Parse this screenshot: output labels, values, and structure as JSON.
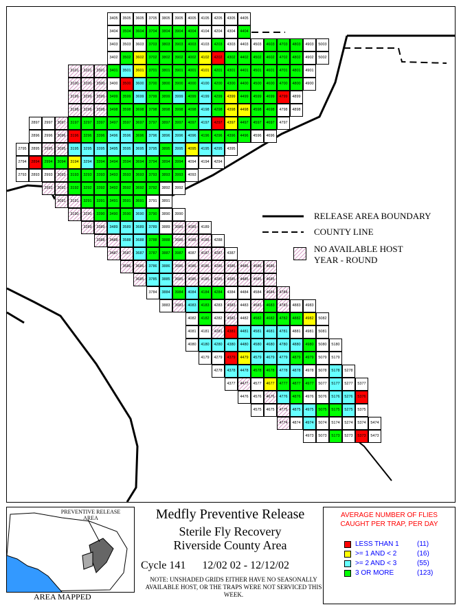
{
  "legend": {
    "release_boundary": "RELEASE AREA BOUNDARY",
    "county_line": "COUNTY LINE",
    "no_host_line1": "NO AVAILABLE HOST",
    "no_host_line2": "YEAR - ROUND"
  },
  "inset": {
    "title": "PREVENTIVE RELEASE AREA",
    "caption": "AREA MAPPED"
  },
  "title": {
    "line1": "Medfly Preventive Release",
    "line2": "Sterile Fly Recovery",
    "line3": "Riverside County Area",
    "cycle": "Cycle 141",
    "dates": "12/02 02 - 12/12/02",
    "note": "NOTE: UNSHADED GRIDS EITHER HAVE NO SEASONALLY AVAILABLE HOST, OR THE TRAPS WERE NOT SERVICED THIS WEEK."
  },
  "key": {
    "title": "AVERAGE NUMBER OF FLIES CAUGHT PER TRAP, PER DAY",
    "items": [
      {
        "label": "LESS THAN 1",
        "count": "(11)",
        "color": "#ff0000"
      },
      {
        "label": ">= 1 AND < 2",
        "count": "(16)",
        "color": "#ffff00"
      },
      {
        "label": ">= 2 AND < 3",
        "count": "(55)",
        "color": "#66ffff"
      },
      {
        "label": "3 OR MORE",
        "count": "(123)",
        "color": "#00ff00"
      }
    ]
  },
  "colors": {
    "red": "#ff0000",
    "yellow": "#ffff00",
    "cyan": "#66ffff",
    "green": "#00ff00",
    "hatch": "#d8a0c8"
  },
  "grid_rows": [
    {
      "x0": 3405,
      "cells": [
        "3405w",
        "3505w",
        "3605w",
        "3705w",
        "3805w",
        "3905w",
        "4005w",
        "4105w",
        "4205w",
        "4305w",
        "4405w"
      ]
    },
    {
      "x0": 3404,
      "cells": [
        "3404w",
        "3504g",
        "3604g",
        "3704g",
        "3804g",
        "3904g",
        "4004g",
        "4104w",
        "4204w",
        "4304w",
        "4404g"
      ]
    },
    {
      "x0": 3403,
      "cells": [
        "3403w",
        "3503w",
        "3603w",
        "3703g",
        "3803g",
        "3903g",
        "4003g",
        "4103w",
        "4203g",
        "4303w",
        "4403w",
        "4503w",
        "4603g",
        "4703g",
        "4803g",
        "4903w",
        "5003w"
      ]
    },
    {
      "x0": 3402,
      "cells": [
        "3402w",
        "3502g",
        "3602y",
        "3702g",
        "3802g",
        "3902g",
        "4002g",
        "4102y",
        "4202r",
        "4302g",
        "4402g",
        "4502g",
        "4602g",
        "4702g",
        "4802g",
        "4902w",
        "5002w"
      ]
    },
    {
      "x0": 3101,
      "cells": [
        "3101h",
        "3201h",
        "3301h",
        "3401g",
        "3501c",
        "3601y",
        "3701g",
        "3801g",
        "3901g",
        "4001g",
        "4101y",
        "4201g",
        "4301g",
        "4401g",
        "4501g",
        "4601g",
        "4701g",
        "4801g",
        "4901w"
      ]
    },
    {
      "x0": 3100,
      "cells": [
        "3100h",
        "3200h",
        "3300h",
        "3400w",
        "3500r",
        "3600c",
        "3700g",
        "3800g",
        "3900g",
        "4000g",
        "4100c",
        "4200g",
        "4300g",
        "4400g",
        "4500g",
        "4600g",
        "4700g",
        "4800g",
        "4900w"
      ]
    },
    {
      "x0": 3199,
      "cells": [
        "3199h",
        "3299h",
        "3399h",
        "3499g",
        "3599g",
        "3699c",
        "3799g",
        "3899g",
        "3999c",
        "4099g",
        "4199c",
        "4299g",
        "4399y",
        "4499g",
        "4599g",
        "4699g",
        "4799r",
        "4899w"
      ]
    },
    {
      "x0": 3198,
      "cells": [
        "3198h",
        "3298h",
        "3398h",
        "3498g",
        "3598g",
        "3698g",
        "3798g",
        "3898g",
        "3998g",
        "4098g",
        "4198c",
        "4298g",
        "4398y",
        "4498y",
        "4598g",
        "4698g",
        "4798w",
        "4898w"
      ]
    },
    {
      "x0": 2897,
      "cells": [
        "2897w",
        "2997w",
        "3097h",
        "3197g",
        "3297g",
        "3397g",
        "3497g",
        "3597g",
        "3697g",
        "3797g",
        "3897g",
        "3997g",
        "4097g",
        "4197c",
        "4297r",
        "4397y",
        "4497g",
        "4597g",
        "4697g",
        "4797w"
      ]
    },
    {
      "x0": 2896,
      "cells": [
        "2896w",
        "2996w",
        "3096h",
        "3196r",
        "3296g",
        "3396g",
        "3496c",
        "3596c",
        "3696g",
        "3796c",
        "3896c",
        "3996c",
        "4096c",
        "4196g",
        "4296g",
        "4396g",
        "4496g",
        "4596w",
        "4696w"
      ]
    },
    {
      "x0": 2795,
      "cells": [
        "2795w",
        "2895w",
        "2995h",
        "3095h",
        "3195c",
        "3295c",
        "3395c",
        "3495c",
        "3595c",
        "3695c",
        "3795c",
        "3895g",
        "3995c",
        "4095y",
        "4195c",
        "4295c",
        "4395w"
      ]
    },
    {
      "x0": 2794,
      "cells": [
        "2794w",
        "2894r",
        "2994g",
        "3094g",
        "3194y",
        "3294c",
        "3394g",
        "3494g",
        "3594g",
        "3694g",
        "3794g",
        "3894g",
        "3994g",
        "4094w",
        "4194w",
        "4294w"
      ]
    },
    {
      "x0": 2793,
      "cells": [
        "2793w",
        "2893w",
        "2993w",
        "3093h",
        "3193g",
        "3293g",
        "3393g",
        "3493g",
        "3593g",
        "3693g",
        "3793g",
        "3893g",
        "3993g",
        "4093w"
      ]
    },
    {
      "x0": 2992,
      "cells": [
        "2992h",
        "3092h",
        "3192g",
        "3292g",
        "3392g",
        "3492g",
        "3592g",
        "3692g",
        "3792g",
        "3892w",
        "3992w"
      ]
    },
    {
      "x0": 3091,
      "cells": [
        "3091h",
        "3191h",
        "3291g",
        "3391g",
        "3491g",
        "3591g",
        "3691g",
        "3791w",
        "3891w"
      ]
    },
    {
      "x0": 3190,
      "cells": [
        "3190h",
        "3290h",
        "3390g",
        "3490g",
        "3590g",
        "3690c",
        "3790g",
        "3890w",
        "3990w"
      ]
    },
    {
      "x0": 3289,
      "cells": [
        "3289h",
        "3389h",
        "3489c",
        "3589c",
        "3689c",
        "3789c",
        "3889w",
        "3989h",
        "4089h",
        "4189w"
      ]
    },
    {
      "x0": 3388,
      "cells": [
        "3388h",
        "3488h",
        "3588c",
        "3688c",
        "3788g",
        "3888g",
        "3988h",
        "4088h",
        "4188h",
        "4288w"
      ]
    },
    {
      "x0": 3487,
      "cells": [
        "3487h",
        "3587h",
        "3687c",
        "3787g",
        "3887g",
        "3987g",
        "4087w",
        "4187h",
        "4287h",
        "4387w"
      ]
    },
    {
      "x0": 3586,
      "cells": [
        "3586h",
        "3686h",
        "3786c",
        "3886c",
        "3986h",
        "4086h",
        "4186h",
        "4286h",
        "4386h",
        "4486h",
        "4586h",
        "4686h"
      ]
    },
    {
      "x0": 3685,
      "cells": [
        "3685h",
        "3785c",
        "3885c",
        "3985h",
        "4085h",
        "4185h",
        "4285h",
        "4385h",
        "4485h",
        "4585h",
        "4685h"
      ]
    },
    {
      "x0": 3784,
      "cells": [
        "3784w",
        "3884c",
        "3984g",
        "4084c",
        "4184g",
        "4284g",
        "4384w",
        "4484w",
        "4584w",
        "4684h",
        "4784h"
      ]
    },
    {
      "x0": 3883,
      "cells": [
        "3883w",
        "3983h",
        "4083c",
        "4183g",
        "4283w",
        "4383h",
        "4483w",
        "4583h",
        "4683g",
        "4783h",
        "4883w",
        "4983w"
      ]
    },
    {
      "x0": 4082,
      "cells": [
        "4082w",
        "4182g",
        "4282w",
        "4382h",
        "4482w",
        "4582g",
        "4682g",
        "4782g",
        "4882g",
        "4982y",
        "5082w"
      ]
    },
    {
      "x0": 4081,
      "cells": [
        "4081w",
        "4181w",
        "4281h",
        "4381r",
        "4481c",
        "4581c",
        "4681c",
        "4781c",
        "4881w",
        "4981w",
        "5081w"
      ]
    },
    {
      "x0": 4080,
      "cells": [
        "4080w",
        "4180c",
        "4280c",
        "4380c",
        "4480c",
        "4580c",
        "4680c",
        "4780c",
        "4880c",
        "4980g",
        "5080w",
        "5180w"
      ]
    },
    {
      "x0": 4179,
      "cells": [
        "4179w",
        "4279w",
        "4379r",
        "4479y",
        "4579c",
        "4679c",
        "4779c",
        "4879g",
        "4979g",
        "5079w",
        "5179w"
      ]
    },
    {
      "x0": 4278,
      "cells": [
        "4278w",
        "4378c",
        "4478c",
        "4578g",
        "4678g",
        "4778c",
        "4878c",
        "4978w",
        "5078w",
        "5178c",
        "5278w"
      ]
    },
    {
      "x0": 4377,
      "cells": [
        "4377w",
        "4477h",
        "4577w",
        "4677y",
        "4777g",
        "4877g",
        "4977g",
        "5077w",
        "5177c",
        "5277w",
        "5377w"
      ]
    },
    {
      "x0": 4476,
      "cells": [
        "4476w",
        "4576w",
        "4676h",
        "4776c",
        "4876g",
        "4976w",
        "5076w",
        "5176c",
        "5276c",
        "5376r"
      ]
    },
    {
      "x0": 4575,
      "cells": [
        "4575w",
        "4675w",
        "4775h",
        "4875c",
        "4975c",
        "5075g",
        "5175g",
        "5275c",
        "5375w"
      ]
    },
    {
      "x0": 4774,
      "cells": [
        "4774h",
        "4874w",
        "4974c",
        "5074w",
        "5174w",
        "5274w",
        "5374w",
        "5474w"
      ]
    },
    {
      "x0": 4973,
      "cells": [
        "4973w",
        "5073w",
        "5173g",
        "5273w",
        "5373r",
        "5473w"
      ]
    }
  ]
}
